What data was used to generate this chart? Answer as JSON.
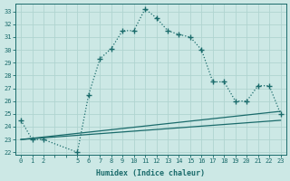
{
  "xlabel": "Humidex (Indice chaleur)",
  "bg_color": "#cce8e5",
  "grid_color": "#b0d4d0",
  "line_color": "#1a6b6b",
  "ylim": [
    21.8,
    33.6
  ],
  "yticks": [
    22,
    23,
    24,
    25,
    26,
    27,
    28,
    29,
    30,
    31,
    32,
    33
  ],
  "xlim": [
    -0.5,
    23.5
  ],
  "xticks_all": [
    0,
    1,
    2,
    3,
    4,
    5,
    6,
    7,
    8,
    9,
    10,
    11,
    12,
    13,
    14,
    15,
    16,
    17,
    18,
    19,
    20,
    21,
    22,
    23
  ],
  "xtick_labels": [
    "0",
    "1",
    "2",
    "",
    "",
    "5",
    "6",
    "7",
    "8",
    "9",
    "10",
    "11",
    "12",
    "13",
    "14",
    "15",
    "16",
    "17",
    "18",
    "19",
    "20",
    "21",
    "22",
    "23"
  ],
  "series1_x": [
    0,
    1,
    2,
    5,
    6,
    7,
    8,
    9,
    10,
    11,
    12,
    13,
    14,
    15,
    16,
    17,
    18,
    19,
    20,
    21,
    22,
    23
  ],
  "series1_y": [
    24.5,
    23.0,
    23.0,
    22.0,
    26.5,
    29.3,
    30.1,
    31.5,
    31.5,
    33.2,
    32.5,
    31.5,
    31.2,
    31.0,
    30.0,
    27.5,
    27.5,
    26.0,
    26.0,
    27.2,
    27.2,
    25.0
  ],
  "series2_x": [
    0,
    23
  ],
  "series2_y": [
    23.0,
    25.2
  ],
  "series3_x": [
    0,
    23
  ],
  "series3_y": [
    23.0,
    24.5
  ],
  "marker": "+",
  "marker_size": 4,
  "linewidth": 0.9,
  "dot_linewidth": 0.8
}
